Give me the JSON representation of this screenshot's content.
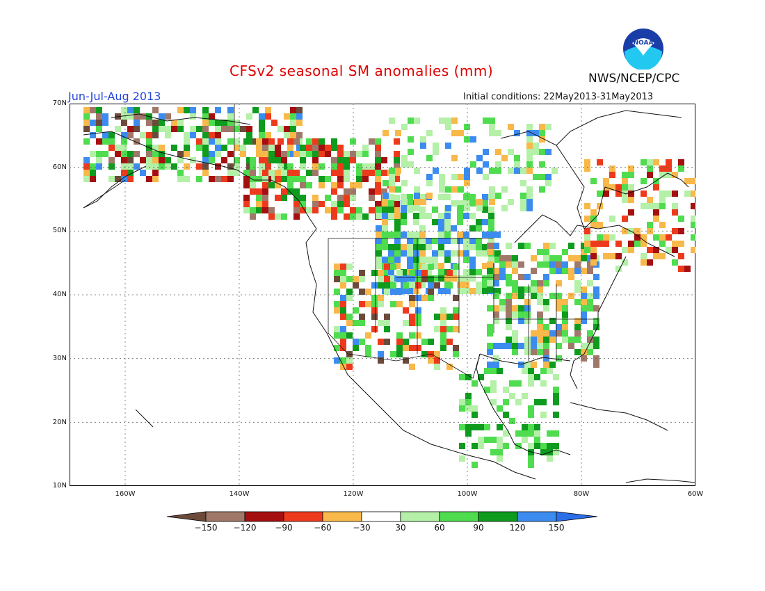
{
  "title": "CFSv2 seasonal SM anomalies (mm)",
  "period": "Jun-Jul-Aug 2013",
  "initial_conditions": "Initial conditions: 22May2013-31May2013",
  "agency": "NWS/NCEP/CPC",
  "logo_text": "NOAA",
  "lat_labels": [
    "70N",
    "60N",
    "50N",
    "40N",
    "30N",
    "20N",
    "10N"
  ],
  "lon_labels": [
    "160W",
    "140W",
    "120W",
    "100W",
    "80W",
    "60W"
  ],
  "colorbar": {
    "labels": [
      "-150",
      "-120",
      "-90",
      "-60",
      "-30",
      "30",
      "60",
      "90",
      "120",
      "150"
    ],
    "colors": [
      "#6b4a3a",
      "#a0786a",
      "#a50f0f",
      "#ee3a1c",
      "#f9b84a",
      "#ffffff",
      "#b4f0a8",
      "#4fdc4f",
      "#0e9b1e",
      "#3c8cf0",
      "#2a6ee8"
    ]
  }
}
